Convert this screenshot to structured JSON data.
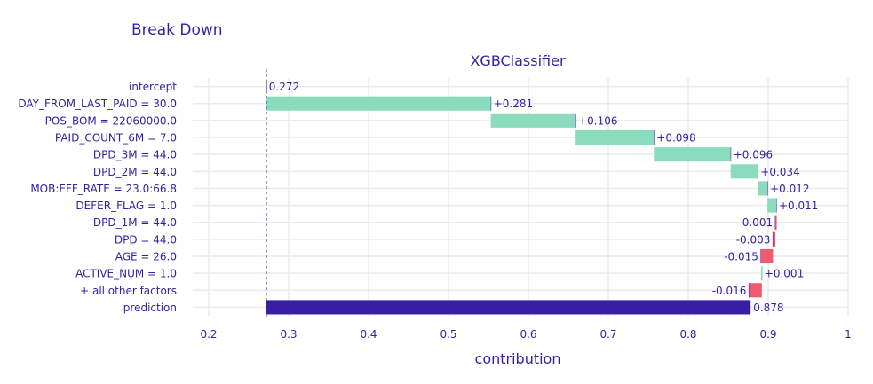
{
  "figure": {
    "title": "Break Down"
  },
  "chart_data": {
    "type": "bar",
    "orientation": "horizontal",
    "subtitle": "XGBClassifier",
    "xlabel": "contribution",
    "ylabel": "",
    "xlim": [
      0.18,
      1.0
    ],
    "xticks": [
      0.2,
      0.3,
      0.4,
      0.5,
      0.6,
      0.7,
      0.8,
      0.9,
      1
    ],
    "xtick_labels": [
      "0.2",
      "0.3",
      "0.4",
      "0.5",
      "0.6",
      "0.7",
      "0.8",
      "0.9",
      "1"
    ],
    "grid": true,
    "legend": "none",
    "baseline": 0.272,
    "categories": [
      "intercept",
      "DAY_FROM_LAST_PAID = 30.0",
      "POS_BOM = 22060000.0",
      "PAID_COUNT_6M = 7.0",
      "DPD_3M = 44.0",
      "DPD_2M = 44.0",
      "MOB:EFF_RATE = 23.0:66.8",
      "DEFER_FLAG = 1.0",
      "DPD_1M = 44.0",
      "DPD = 44.0",
      "AGE = 26.0",
      "ACTIVE_NUM = 1.0",
      "+ all other factors",
      "prediction"
    ],
    "values": [
      0.272,
      0.281,
      0.106,
      0.098,
      0.096,
      0.034,
      0.012,
      0.011,
      -0.001,
      -0.003,
      -0.015,
      0.001,
      -0.016,
      0.878
    ],
    "value_labels": [
      "0.272",
      "+0.281",
      "+0.106",
      "+0.098",
      "+0.096",
      "+0.034",
      "+0.012",
      "+0.011",
      "-0.001",
      "-0.003",
      "-0.015",
      "+0.001",
      "-0.016",
      "0.878"
    ],
    "bar_kind": [
      "intercept",
      "delta",
      "delta",
      "delta",
      "delta",
      "delta",
      "delta",
      "delta",
      "delta",
      "delta",
      "delta",
      "delta",
      "delta",
      "total"
    ]
  },
  "colors": {
    "positive": "#8bdcbe",
    "negative": "#f05a71",
    "prediction": "#371ea3",
    "text": "#371ea3",
    "title": "#371ea3",
    "label": "#371ea3",
    "grid": "#ebebeb",
    "connector": "#371ea3"
  }
}
